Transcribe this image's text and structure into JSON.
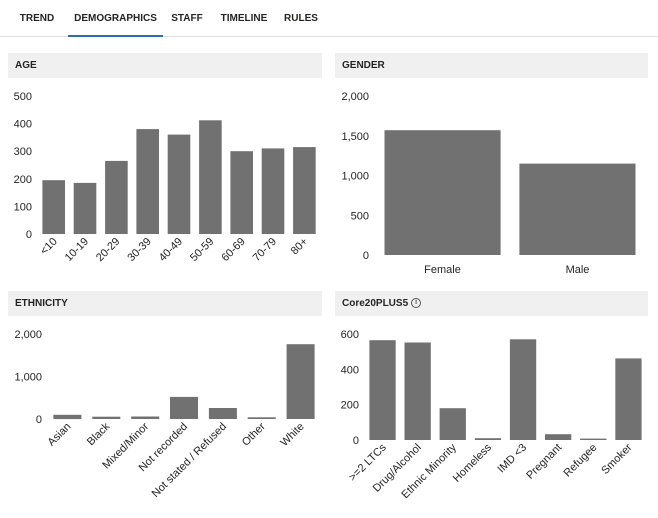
{
  "tabs": [
    {
      "label": "TREND",
      "active": false
    },
    {
      "label": "DEMOGRAPHICS",
      "active": true
    },
    {
      "label": "STAFF",
      "active": false
    },
    {
      "label": "TIMELINE",
      "active": false
    },
    {
      "label": "RULES",
      "active": false
    }
  ],
  "colors": {
    "bar": "#717171",
    "accent": "#2b6ea8",
    "header_bg": "#f0f0f0"
  },
  "panels": {
    "age": {
      "title": "AGE"
    },
    "gender": {
      "title": "GENDER"
    },
    "ethnicity": {
      "title": "ETHNICITY"
    },
    "core20": {
      "title": "Core20PLUS5",
      "icon": "info-icon"
    }
  },
  "chart_data": [
    {
      "id": "age",
      "type": "bar",
      "categories": [
        "<10",
        "10-19",
        "20-29",
        "30-39",
        "40-49",
        "50-59",
        "60-69",
        "70-79",
        "80+"
      ],
      "values": [
        195,
        185,
        265,
        380,
        360,
        412,
        300,
        310,
        315
      ],
      "yticks": [
        "0",
        "100",
        "200",
        "300",
        "400",
        "500"
      ],
      "ylim": [
        0,
        500
      ],
      "grid": false,
      "x_label_rotation": -45
    },
    {
      "id": "gender",
      "type": "bar",
      "categories": [
        "Female",
        "Male"
      ],
      "values": [
        1570,
        1150
      ],
      "yticks": [
        "0",
        "500",
        "1,000",
        "1,500",
        "2,000"
      ],
      "ylim": [
        0,
        2000
      ],
      "grid": false,
      "x_label_rotation": 0
    },
    {
      "id": "ethnicity",
      "type": "bar",
      "categories": [
        "Asian",
        "Black",
        "Mixed/Minor",
        "Not recorded",
        "Not stated / Refused",
        "Other",
        "White"
      ],
      "values": [
        100,
        55,
        60,
        520,
        260,
        40,
        1760
      ],
      "yticks": [
        "0",
        "1,000",
        "2,000"
      ],
      "ylim": [
        0,
        2000
      ],
      "grid": false,
      "x_label_rotation": -45
    },
    {
      "id": "core20",
      "type": "bar",
      "categories": [
        ">=2 LTCs",
        "Drug/Alcohol",
        "Ethnic Minority",
        "Homeless",
        "IMD <3",
        "Pregnant",
        "Refugee",
        "Smoker"
      ],
      "values": [
        565,
        552,
        180,
        10,
        570,
        33,
        8,
        462
      ],
      "yticks": [
        "0",
        "200",
        "400",
        "600"
      ],
      "ylim": [
        0,
        600
      ],
      "grid": false,
      "x_label_rotation": -45
    }
  ]
}
